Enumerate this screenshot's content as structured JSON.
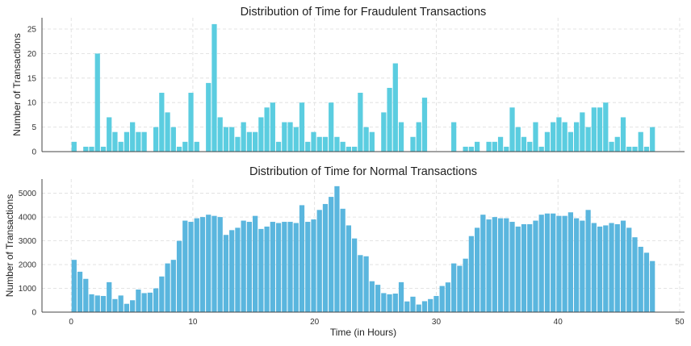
{
  "chart_data": [
    {
      "type": "bar",
      "title": "Distribution of Time for Fraudulent Transactions",
      "xlabel": "",
      "ylabel": "Number of Transactions",
      "bin_width": 0.48,
      "x_start": 0,
      "xlim": [
        -2.4,
        50.4
      ],
      "ylim": [
        0,
        27.3
      ],
      "yticks": [
        0,
        5,
        10,
        15,
        20,
        25
      ],
      "xticks": [
        0,
        10,
        20,
        30,
        40,
        50
      ],
      "show_xtick_labels": false,
      "grid": true,
      "bar_color": "#5bcde0",
      "values": [
        2,
        0,
        1,
        1,
        20,
        1,
        7,
        4,
        2,
        4,
        6,
        4,
        4,
        0,
        5,
        12,
        8,
        5,
        1,
        2,
        12,
        2,
        0,
        14,
        26,
        7,
        5,
        5,
        3,
        6,
        4,
        4,
        7,
        9,
        10,
        2,
        6,
        6,
        5,
        10,
        2,
        4,
        3,
        3,
        10,
        3,
        2,
        1,
        1,
        12,
        5,
        4,
        0,
        8,
        13,
        18,
        6,
        0,
        3,
        6,
        11,
        0,
        0,
        0,
        0,
        6,
        0,
        1,
        1,
        2,
        0,
        2,
        2,
        3,
        1,
        9,
        5,
        3,
        2,
        6,
        1,
        4,
        6,
        7,
        6,
        4,
        6,
        8,
        5,
        9,
        9,
        10,
        2,
        3,
        7,
        1,
        1,
        4,
        1,
        5
      ]
    },
    {
      "type": "bar",
      "title": "Distribution of Time for Normal Transactions",
      "xlabel": "Time (in Hours)",
      "ylabel": "Number of Transactions",
      "bin_width": 0.48,
      "x_start": 0,
      "xlim": [
        -2.4,
        50.4
      ],
      "ylim": [
        0,
        5600
      ],
      "yticks": [
        0,
        1000,
        2000,
        3000,
        4000,
        5000
      ],
      "xticks": [
        0,
        10,
        20,
        30,
        40,
        50
      ],
      "show_xtick_labels": true,
      "grid": true,
      "bar_color": "#5ab6de",
      "values": [
        2200,
        1700,
        1400,
        750,
        700,
        680,
        1260,
        550,
        700,
        350,
        500,
        950,
        800,
        820,
        1000,
        1500,
        2050,
        2200,
        3000,
        3850,
        3800,
        3950,
        4000,
        4100,
        4050,
        4000,
        3250,
        3450,
        3550,
        3850,
        3800,
        4050,
        3500,
        3600,
        3800,
        3750,
        3800,
        3800,
        3750,
        4500,
        3800,
        3900,
        4300,
        4550,
        4850,
        5300,
        4350,
        3650,
        3100,
        2400,
        2350,
        1300,
        1150,
        800,
        750,
        780,
        1260,
        450,
        650,
        320,
        460,
        550,
        680,
        1100,
        1250,
        2050,
        1950,
        2250,
        3200,
        3550,
        4100,
        3900,
        4000,
        3950,
        3950,
        3800,
        3600,
        3700,
        3700,
        3850,
        4100,
        4150,
        4150,
        4050,
        4050,
        4200,
        3950,
        3850,
        4300,
        3750,
        3600,
        3650,
        3750,
        3700,
        3850,
        3550,
        3150,
        2750,
        2500,
        2150
      ]
    }
  ]
}
